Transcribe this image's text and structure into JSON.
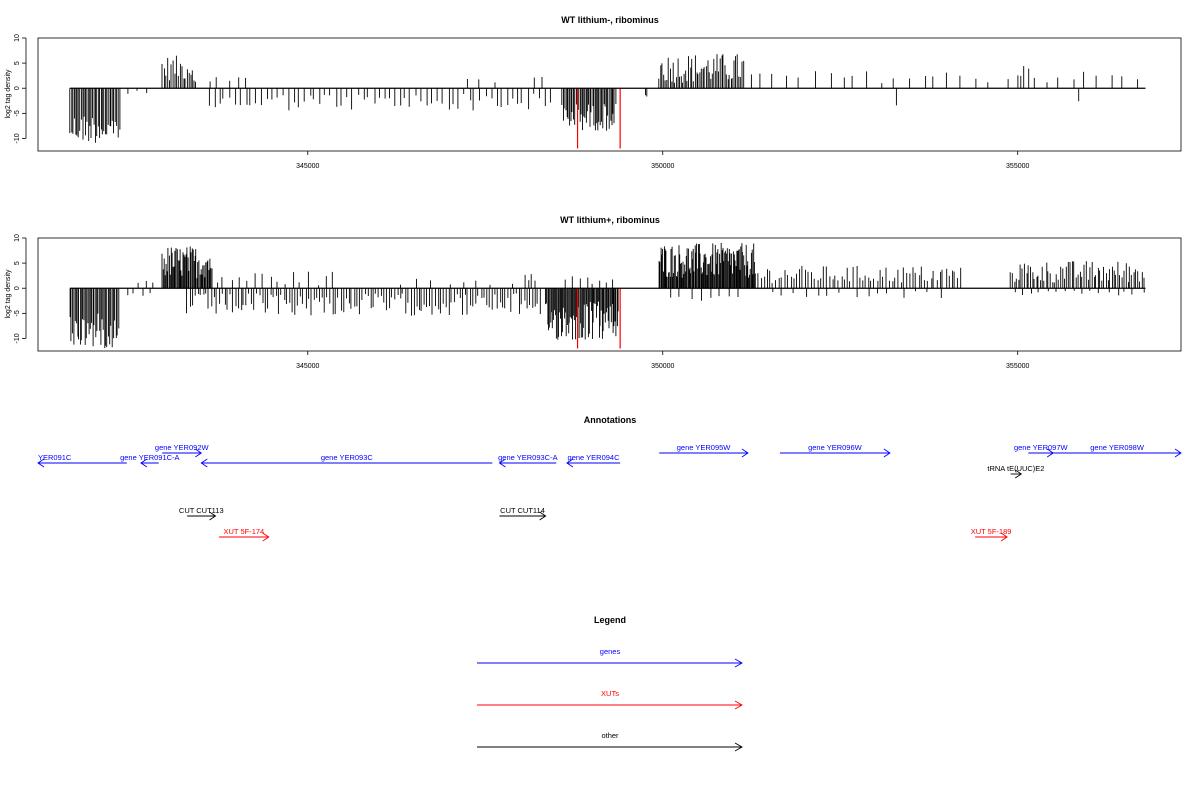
{
  "colors": {
    "gene": "#0000ff",
    "xut": "#ff0000",
    "other": "#000000",
    "highlight": "#ff0000"
  },
  "chart_data": [
    {
      "type": "bar",
      "title": "WT lithium-, ribominus",
      "ylabel": "log2 tag density",
      "xlim": [
        341200,
        357300
      ],
      "ylim": [
        -12.5,
        10
      ],
      "yticks": [
        10,
        5,
        0,
        -5,
        -10
      ],
      "xticks": [
        "345000",
        "350000",
        "355000"
      ],
      "xtick_values": [
        345000,
        350000,
        355000
      ],
      "highlight_markers": [
        348800,
        349400
      ],
      "segments": [
        {
          "start": 341650,
          "end": 342350,
          "sign": -1,
          "min": 5,
          "max": 11,
          "step": 20
        },
        {
          "start": 342450,
          "end": 342850,
          "sign": -1,
          "min": 0.5,
          "max": 1.5,
          "step": 140
        },
        {
          "start": 342950,
          "end": 343400,
          "sign": 1,
          "min": 1.5,
          "max": 6.5,
          "step": 25
        },
        {
          "start": 343600,
          "end": 348400,
          "sign": -1,
          "min": 1,
          "max": 4.5,
          "step": 75
        },
        {
          "start": 343450,
          "end": 344200,
          "sign": 1,
          "min": 1,
          "max": 2.5,
          "step": 140
        },
        {
          "start": 347200,
          "end": 347700,
          "sign": 1,
          "min": 1,
          "max": 2,
          "step": 250
        },
        {
          "start": 348200,
          "end": 348300,
          "sign": 1,
          "min": 2,
          "max": 2.5,
          "step": 100
        },
        {
          "start": 348580,
          "end": 349350,
          "sign": -1,
          "min": 3,
          "max": 8.5,
          "step": 18
        },
        {
          "start": 349750,
          "end": 349780,
          "sign": -1,
          "min": 1,
          "max": 2,
          "step": 30
        },
        {
          "start": 349950,
          "end": 351150,
          "sign": 1,
          "min": 1,
          "max": 7,
          "step": 22
        },
        {
          "start": 351200,
          "end": 356800,
          "sign": 1,
          "min": 1,
          "max": 3.5,
          "step": 190
        },
        {
          "start": 353300,
          "end": 353320,
          "sign": -1,
          "min": 3,
          "max": 3.5,
          "step": 50
        },
        {
          "start": 355000,
          "end": 355150,
          "sign": 1,
          "min": 2,
          "max": 5,
          "step": 70
        },
        {
          "start": 355850,
          "end": 355870,
          "sign": -1,
          "min": 2.5,
          "max": 3,
          "step": 50
        }
      ]
    },
    {
      "type": "bar",
      "title": "WT lithium+, ribominus",
      "ylabel": "log2 tag density",
      "xlim": [
        341200,
        357300
      ],
      "ylim": [
        -12.5,
        10
      ],
      "yticks": [
        10,
        5,
        0,
        -5,
        -10
      ],
      "xticks": [
        "345000",
        "350000",
        "355000"
      ],
      "xtick_values": [
        345000,
        350000,
        355000
      ],
      "highlight_markers": [
        348800,
        349400
      ],
      "segments": [
        {
          "start": 341650,
          "end": 342350,
          "sign": -1,
          "min": 5,
          "max": 12,
          "step": 18
        },
        {
          "start": 342450,
          "end": 342850,
          "sign": -1,
          "min": 0.5,
          "max": 1.5,
          "step": 110
        },
        {
          "start": 342600,
          "end": 342800,
          "sign": 1,
          "min": 1,
          "max": 1.5,
          "step": 100
        },
        {
          "start": 342950,
          "end": 343650,
          "sign": 1,
          "min": 2,
          "max": 8.5,
          "step": 14
        },
        {
          "start": 343300,
          "end": 348300,
          "sign": -1,
          "min": 1,
          "max": 5.5,
          "step": 38
        },
        {
          "start": 343700,
          "end": 345400,
          "sign": 1,
          "min": 0.5,
          "max": 3.5,
          "step": 110
        },
        {
          "start": 346300,
          "end": 347900,
          "sign": 1,
          "min": 0.5,
          "max": 2,
          "step": 220
        },
        {
          "start": 348050,
          "end": 348200,
          "sign": 1,
          "min": 1.5,
          "max": 4.5,
          "step": 50
        },
        {
          "start": 348350,
          "end": 349380,
          "sign": -1,
          "min": 2.5,
          "max": 10.5,
          "step": 14
        },
        {
          "start": 348650,
          "end": 349300,
          "sign": 1,
          "min": 0.5,
          "max": 2.5,
          "step": 90
        },
        {
          "start": 349950,
          "end": 351300,
          "sign": 1,
          "min": 2,
          "max": 9,
          "step": 12
        },
        {
          "start": 350100,
          "end": 351100,
          "sign": -1,
          "min": 0.5,
          "max": 2.5,
          "step": 140
        },
        {
          "start": 351300,
          "end": 354200,
          "sign": 1,
          "min": 1,
          "max": 4.5,
          "step": 42
        },
        {
          "start": 351500,
          "end": 354000,
          "sign": -1,
          "min": 0.5,
          "max": 2,
          "step": 170
        },
        {
          "start": 354900,
          "end": 356800,
          "sign": 1,
          "min": 1,
          "max": 5.5,
          "step": 28
        },
        {
          "start": 354950,
          "end": 356800,
          "sign": -1,
          "min": 0.5,
          "max": 1.5,
          "step": 120
        }
      ]
    }
  ],
  "annotations": {
    "title": "Annotations",
    "features": [
      {
        "label": "YER091C",
        "type": "gene",
        "strand": -1,
        "start": 341200,
        "end": 342450,
        "row": 1,
        "label_pos": "left-clip"
      },
      {
        "label": "gene YER091C-A",
        "type": "gene",
        "strand": -1,
        "start": 342650,
        "end": 342900,
        "row": 1
      },
      {
        "label": "gene YER092W",
        "type": "gene",
        "strand": 1,
        "start": 342950,
        "end": 343500,
        "row": 0
      },
      {
        "label": "gene YER093C",
        "type": "gene",
        "strand": -1,
        "start": 343500,
        "end": 347600,
        "row": 1
      },
      {
        "label": "gene YER093C-A",
        "type": "gene",
        "strand": -1,
        "start": 347700,
        "end": 348500,
        "row": 1
      },
      {
        "label": "gene YER094C",
        "type": "gene",
        "strand": -1,
        "start": 348650,
        "end": 349400,
        "row": 1
      },
      {
        "label": "gene YER095W",
        "type": "gene",
        "strand": 1,
        "start": 349950,
        "end": 351200,
        "row": 0
      },
      {
        "label": "gene YER096W",
        "type": "gene",
        "strand": 1,
        "start": 351650,
        "end": 353200,
        "row": 0
      },
      {
        "label": "gene YER097W",
        "type": "gene",
        "strand": 1,
        "start": 355150,
        "end": 355500,
        "row": 0
      },
      {
        "label": "gene YER098W",
        "type": "gene",
        "strand": 1,
        "start": 355500,
        "end": 357300,
        "row": 0
      },
      {
        "label": "tRNA tE(UUC)E2",
        "type": "other",
        "strand": 1,
        "start": 354900,
        "end": 355050,
        "row": 2
      },
      {
        "label": "CUT CUT113",
        "type": "other",
        "strand": 1,
        "start": 343300,
        "end": 343700,
        "row": 3
      },
      {
        "label": "CUT CUT114",
        "type": "other",
        "strand": 1,
        "start": 347700,
        "end": 348350,
        "row": 3
      },
      {
        "label": "XUT 5F-174",
        "type": "xut",
        "strand": 1,
        "start": 343750,
        "end": 344450,
        "row": 4
      },
      {
        "label": "XUT 5F-189",
        "type": "xut",
        "strand": 1,
        "start": 354400,
        "end": 354850,
        "row": 4
      }
    ]
  },
  "legend": {
    "title": "Legend",
    "items": [
      {
        "label": "genes",
        "type": "gene"
      },
      {
        "label": "XUTs",
        "type": "xut"
      },
      {
        "label": "other",
        "type": "other"
      }
    ]
  }
}
